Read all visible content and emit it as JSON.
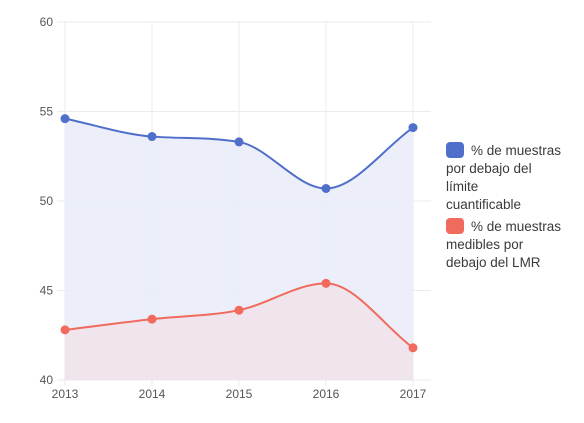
{
  "chart_data": {
    "type": "area",
    "title": "",
    "xlabel": "",
    "ylabel": "",
    "x": [
      "2013",
      "2014",
      "2015",
      "2016",
      "2017"
    ],
    "ylim": [
      40,
      60
    ],
    "yticks": [
      "40",
      "45",
      "50",
      "55",
      "60"
    ],
    "grid": true,
    "legend_position": "right",
    "series": [
      {
        "name": "% de muestras por debajo del límite cuantificable",
        "legend_lines": [
          "% de muestras",
          "por debajo del",
          "límite",
          "cuantificable"
        ],
        "values": [
          54.6,
          53.6,
          53.3,
          50.7,
          54.1
        ],
        "color": "#4f6fcb",
        "fill": "#e9ecf9"
      },
      {
        "name": "% de muestras medibles por debajo del LMR",
        "legend_lines": [
          "% de muestras",
          "medibles por",
          "debajo del LMR"
        ],
        "values": [
          42.8,
          43.4,
          43.9,
          45.4,
          41.8
        ],
        "color": "#f06a5d",
        "fill": "#f1e3ea"
      }
    ]
  }
}
